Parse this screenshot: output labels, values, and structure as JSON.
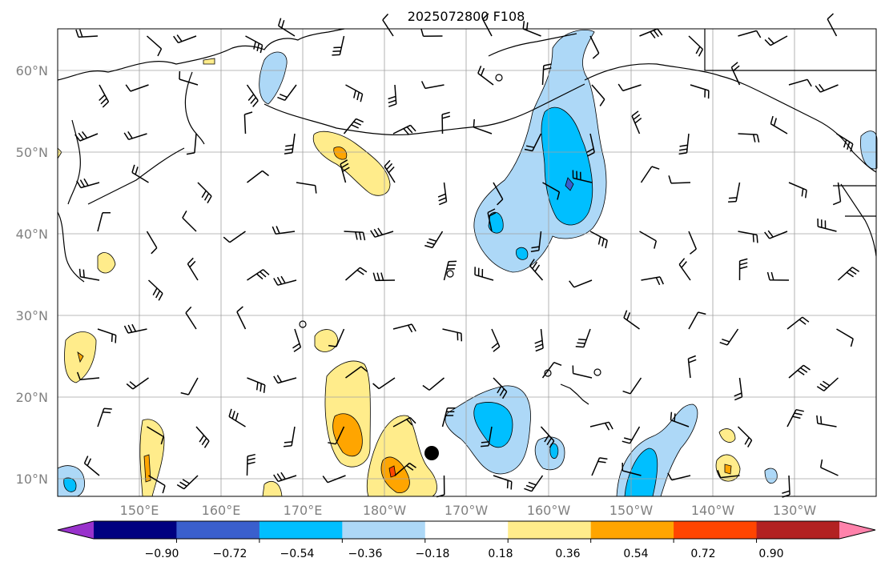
{
  "title": "2025072800 F108",
  "map": {
    "lon_labels": [
      "150°E",
      "160°E",
      "170°E",
      "180°W",
      "170°W",
      "160°W",
      "150°W",
      "140°W",
      "130°W"
    ],
    "lat_labels": [
      "60°N",
      "50°N",
      "40°N",
      "30°N",
      "20°N",
      "10°N"
    ],
    "lon_range": [
      "140°E",
      "120°W"
    ],
    "lat_range": [
      "8°N",
      "65°N"
    ],
    "grid": true,
    "features": [
      "coastlines",
      "wind-barbs",
      "shaded-anomaly-field",
      "tropical-storm-marker"
    ]
  },
  "colorbar": {
    "tick_labels": [
      "−0.90",
      "−0.72",
      "−0.54",
      "−0.36",
      "−0.18",
      "0.18",
      "0.36",
      "0.54",
      "0.72",
      "0.90"
    ],
    "colors": [
      "#9932cc",
      "#000080",
      "#3a5fcd",
      "#00bfff",
      "#add8f7",
      "#ffffff",
      "#ffec8b",
      "#ffa500",
      "#ff4500",
      "#b22222",
      "#ff82ab"
    ],
    "extend": "both"
  }
}
